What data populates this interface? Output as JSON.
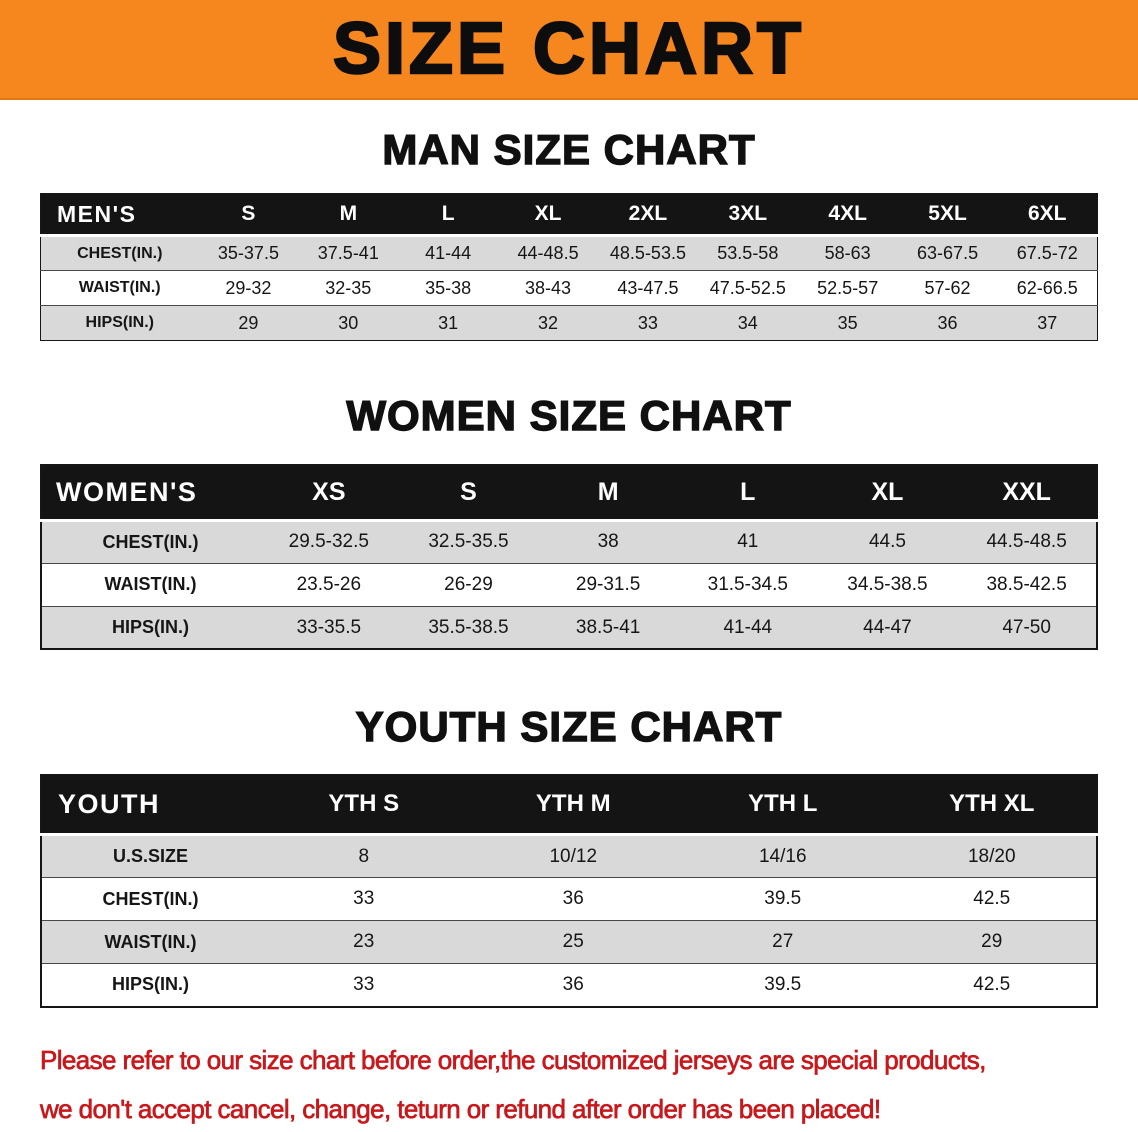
{
  "banner": {
    "title": "SIZE CHART"
  },
  "sections": [
    {
      "id": "men",
      "heading": "MAN SIZE CHART",
      "table": {
        "header": [
          "MEN'S",
          "S",
          "M",
          "L",
          "XL",
          "2XL",
          "3XL",
          "4XL",
          "5XL",
          "6XL"
        ],
        "rows": [
          [
            "CHEST(IN.)",
            "35-37.5",
            "37.5-41",
            "41-44",
            "44-48.5",
            "48.5-53.5",
            "53.5-58",
            "58-63",
            "63-67.5",
            "67.5-72"
          ],
          [
            "WAIST(IN.)",
            "29-32",
            "32-35",
            "35-38",
            "38-43",
            "43-47.5",
            "47.5-52.5",
            "52.5-57",
            "57-62",
            "62-66.5"
          ],
          [
            "HIPS(IN.)",
            "29",
            "30",
            "31",
            "32",
            "33",
            "34",
            "35",
            "36",
            "37"
          ]
        ]
      }
    },
    {
      "id": "women",
      "heading": "WOMEN SIZE CHART",
      "table": {
        "header": [
          "WOMEN'S",
          "XS",
          "S",
          "M",
          "L",
          "XL",
          "XXL"
        ],
        "rows": [
          [
            "CHEST(IN.)",
            "29.5-32.5",
            "32.5-35.5",
            "38",
            "41",
            "44.5",
            "44.5-48.5"
          ],
          [
            "WAIST(IN.)",
            "23.5-26",
            "26-29",
            "29-31.5",
            "31.5-34.5",
            "34.5-38.5",
            "38.5-42.5"
          ],
          [
            "HIPS(IN.)",
            "33-35.5",
            "35.5-38.5",
            "38.5-41",
            "41-44",
            "44-47",
            "47-50"
          ]
        ]
      }
    },
    {
      "id": "youth",
      "heading": "YOUTH SIZE CHART",
      "table": {
        "header": [
          "YOUTH",
          "YTH S",
          "YTH M",
          "YTH L",
          "YTH XL"
        ],
        "rows": [
          [
            "U.S.SIZE",
            "8",
            "10/12",
            "14/16",
            "18/20"
          ],
          [
            "CHEST(IN.)",
            "33",
            "36",
            "39.5",
            "42.5"
          ],
          [
            "WAIST(IN.)",
            "23",
            "25",
            "27",
            "29"
          ],
          [
            "HIPS(IN.)",
            "33",
            "36",
            "39.5",
            "42.5"
          ]
        ]
      }
    }
  ],
  "footer": {
    "line1": "Please refer to our size chart before order,the customized jerseys are special products,",
    "line2": "we don't accept cancel, change, teturn or refund after order has been placed!"
  },
  "colors": {
    "banner_bg": "#f6871f",
    "header_bg": "#141414",
    "row_gray": "#d9d9d9",
    "note_red": "#c8181c"
  }
}
